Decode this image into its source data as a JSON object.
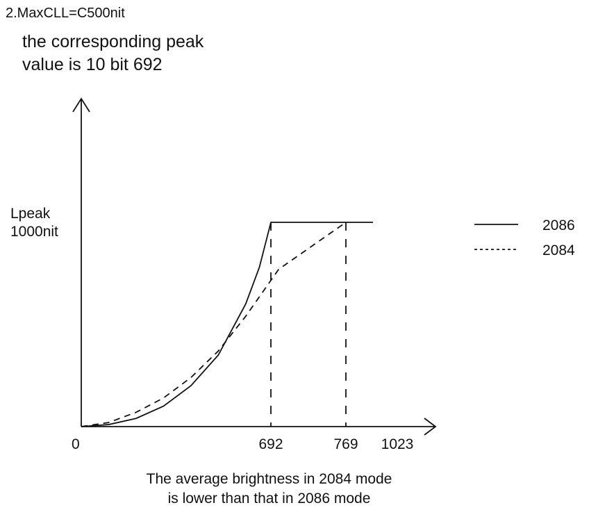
{
  "heading": "2.MaxCLL=C500nit",
  "note": [
    "the corresponding peak",
    "value is 10 bit 692"
  ],
  "y_axis_label": [
    "Lpeak",
    "1000nit"
  ],
  "caption": [
    "The average brightness in 2084 mode",
    "is lower than that in 2086 mode"
  ],
  "colors": {
    "line": "#111111",
    "background": "#ffffff"
  },
  "chart_data": {
    "type": "line",
    "title": "",
    "xlabel": "",
    "ylabel": "Lpeak 1000nit",
    "xlim": [
      0,
      1023
    ],
    "ylim": [
      0,
      1
    ],
    "x_tick_labels": [
      "0",
      "692",
      "769",
      "1023"
    ],
    "grid": false,
    "legend_position": "right",
    "series": [
      {
        "name": "2086",
        "style": "solid",
        "knee_x": 692,
        "x_end": 1023,
        "x": [
          0,
          100,
          200,
          300,
          400,
          500,
          600,
          650,
          692,
          1023
        ],
        "y": [
          0,
          0.01,
          0.04,
          0.1,
          0.2,
          0.35,
          0.6,
          0.78,
          1,
          1
        ]
      },
      {
        "name": "2084",
        "style": "dashed",
        "knee_x": 769,
        "x_end": 769,
        "x": [
          0,
          100,
          200,
          300,
          400,
          500,
          600,
          700,
          769
        ],
        "y": [
          0,
          0.02,
          0.07,
          0.14,
          0.24,
          0.37,
          0.54,
          0.77,
          1
        ]
      }
    ]
  }
}
